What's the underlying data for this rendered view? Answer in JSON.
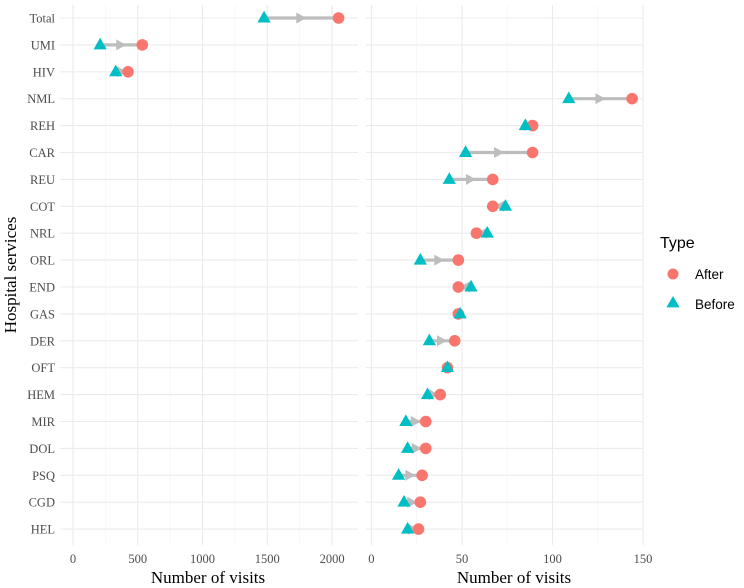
{
  "chart_data": {
    "type": "dumbbell",
    "ylabel": "Hospital services",
    "categories": [
      "Total",
      "UMI",
      "HIV",
      "NML",
      "REH",
      "CAR",
      "REU",
      "COT",
      "NRL",
      "ORL",
      "END",
      "GAS",
      "DER",
      "OFT",
      "HEM",
      "MIR",
      "DOL",
      "PSQ",
      "CGD",
      "HEL"
    ],
    "panels": [
      {
        "xlabel": "Number of visits",
        "xlim": [
          -100,
          2200
        ],
        "xticks": [
          0,
          500,
          1000,
          1500,
          2000
        ],
        "xtick_labels": [
          "0",
          "500",
          "1000",
          "1500",
          "2000"
        ],
        "categories": [
          "Total",
          "UMI",
          "HIV"
        ],
        "before": [
          1475,
          210,
          330
        ],
        "after": [
          2050,
          535,
          425
        ]
      },
      {
        "xlabel": "Number of visits",
        "xlim": [
          -3,
          150
        ],
        "xticks": [
          0,
          50,
          100,
          150
        ],
        "xtick_labels": [
          "0",
          "50",
          "100",
          "150"
        ],
        "categories": [
          "NML",
          "REH",
          "CAR",
          "REU",
          "COT",
          "NRL",
          "ORL",
          "END",
          "GAS",
          "DER",
          "OFT",
          "HEM",
          "MIR",
          "DOL",
          "PSQ",
          "CGD",
          "HEL"
        ],
        "before": [
          109,
          85,
          52,
          43,
          74,
          64,
          27,
          55,
          49,
          32,
          42,
          31,
          19,
          20,
          15,
          18,
          20
        ],
        "after": [
          144,
          89,
          89,
          67,
          67,
          58,
          48,
          48,
          48,
          46,
          42,
          38,
          30,
          30,
          28,
          27,
          26
        ]
      }
    ],
    "legend": {
      "title": "Type",
      "position": "right",
      "entries": [
        {
          "label": "After",
          "color": "#F8766D",
          "shape": "circle"
        },
        {
          "label": "Before",
          "color": "#00BFC4",
          "shape": "triangle"
        }
      ]
    },
    "arrow_color": "#bdbdbd",
    "grid": true
  }
}
